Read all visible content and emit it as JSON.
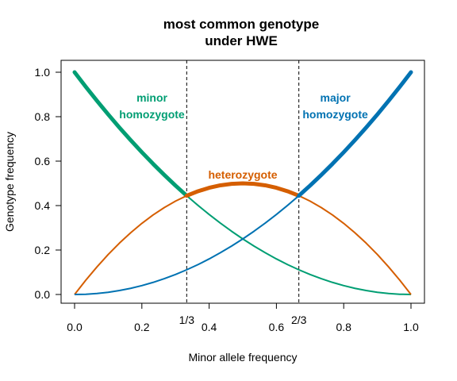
{
  "chart_data": {
    "type": "line",
    "title": [
      "most common genotype",
      "under HWE"
    ],
    "xlabel": "Minor allele frequency",
    "ylabel": "Genotype frequency",
    "xlim": [
      0,
      1
    ],
    "ylim": [
      0,
      1
    ],
    "xticks": [
      0.0,
      0.2,
      0.4,
      0.6,
      0.8,
      1.0
    ],
    "xtick_labels": [
      "0.0",
      "0.2",
      "0.4",
      "0.6",
      "0.8",
      "1.0"
    ],
    "yticks": [
      0.0,
      0.2,
      0.4,
      0.6,
      0.8,
      1.0
    ],
    "ytick_labels": [
      "0.0",
      "0.2",
      "0.4",
      "0.6",
      "0.8",
      "1.0"
    ],
    "grid": false,
    "vlines": [
      {
        "x": 0.3333,
        "label": "1/3",
        "style": "dashed"
      },
      {
        "x": 0.6667,
        "label": "2/3",
        "style": "dashed"
      }
    ],
    "x": [
      0.0,
      0.0333,
      0.0667,
      0.1,
      0.1333,
      0.1667,
      0.2,
      0.2333,
      0.2667,
      0.3,
      0.3333,
      0.3667,
      0.4,
      0.4333,
      0.4667,
      0.5,
      0.5333,
      0.5667,
      0.6,
      0.6333,
      0.6667,
      0.7,
      0.7333,
      0.7667,
      0.8,
      0.8333,
      0.8667,
      0.9,
      0.9333,
      0.9667,
      1.0
    ],
    "series": [
      {
        "name": "minor homozygote",
        "label_lines": [
          "minor",
          "homozygote"
        ],
        "color": "#009E73",
        "bold_range": [
          0.0,
          0.3333
        ],
        "values": [
          1.0,
          0.9344,
          0.8711,
          0.81,
          0.7511,
          0.6944,
          0.64,
          0.5878,
          0.5378,
          0.49,
          0.4444,
          0.4011,
          0.36,
          0.3211,
          0.2844,
          0.25,
          0.2178,
          0.1878,
          0.16,
          0.1344,
          0.1111,
          0.09,
          0.0711,
          0.0544,
          0.04,
          0.0278,
          0.0178,
          0.01,
          0.0044,
          0.0011,
          0.0
        ]
      },
      {
        "name": "heterozygote",
        "label_lines": [
          "heterozygote"
        ],
        "color": "#D55E00",
        "bold_range": [
          0.3333,
          0.6667
        ],
        "values": [
          0.0,
          0.0644,
          0.1244,
          0.18,
          0.2311,
          0.2778,
          0.32,
          0.3578,
          0.3911,
          0.42,
          0.4444,
          0.4644,
          0.48,
          0.4911,
          0.4978,
          0.5,
          0.4978,
          0.4911,
          0.48,
          0.4644,
          0.4444,
          0.42,
          0.3911,
          0.3578,
          0.32,
          0.2778,
          0.2311,
          0.18,
          0.1244,
          0.0644,
          0.0
        ]
      },
      {
        "name": "major homozygote",
        "label_lines": [
          "major",
          "homozygote"
        ],
        "color": "#0072B2",
        "bold_range": [
          0.6667,
          1.0
        ],
        "values": [
          0.0,
          0.0011,
          0.0044,
          0.01,
          0.0178,
          0.0278,
          0.04,
          0.0544,
          0.0711,
          0.09,
          0.1111,
          0.1344,
          0.16,
          0.1878,
          0.2178,
          0.25,
          0.2844,
          0.3211,
          0.36,
          0.4011,
          0.4444,
          0.49,
          0.5378,
          0.5878,
          0.64,
          0.6944,
          0.7511,
          0.81,
          0.8711,
          0.9344,
          1.0
        ]
      }
    ]
  }
}
